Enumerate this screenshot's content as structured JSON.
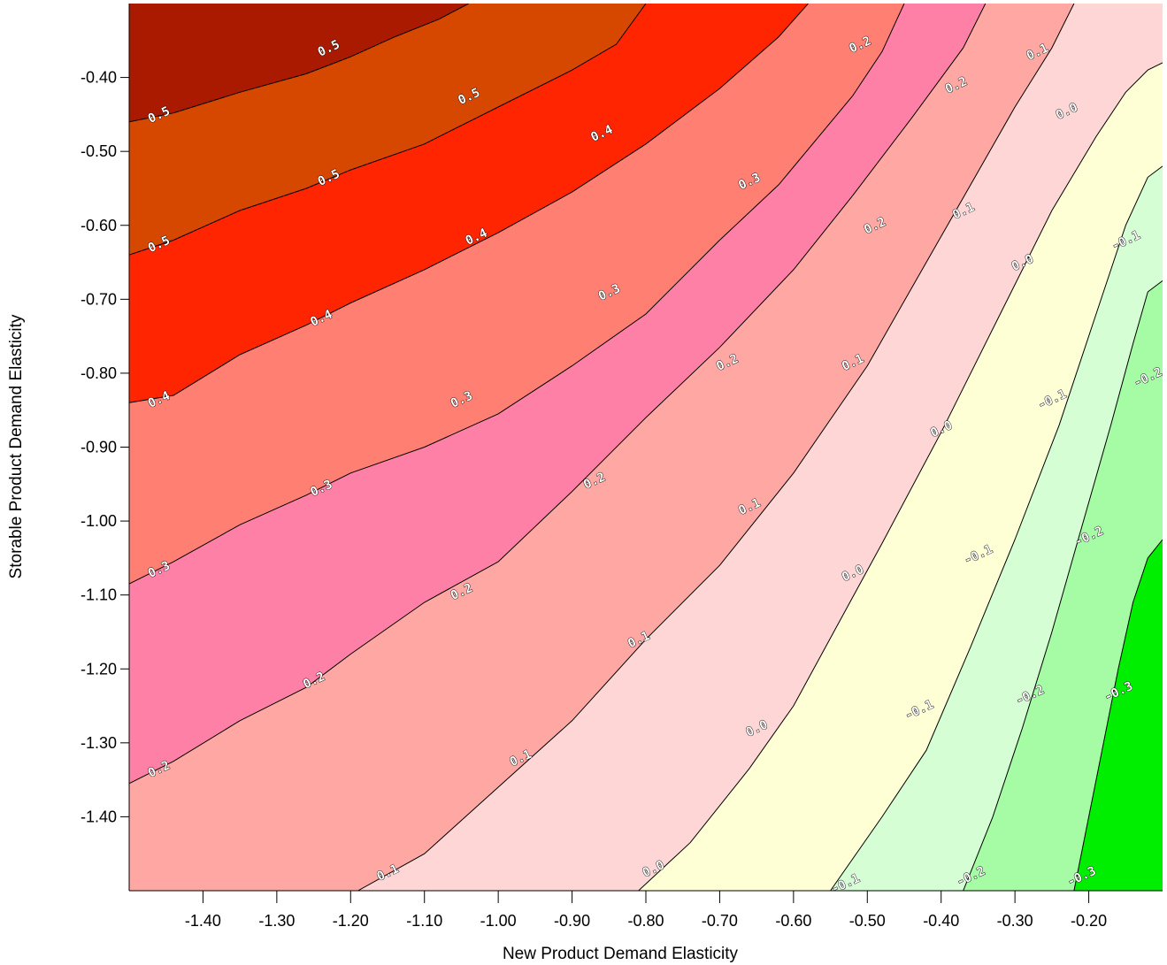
{
  "chart_data": {
    "type": "contour",
    "title": "",
    "xlabel": "New Product Demand Elasticity",
    "ylabel": "Storable Product Demand Elasticity",
    "xlim": [
      -1.5,
      -0.1
    ],
    "ylim": [
      -1.5,
      -0.3
    ],
    "x_ticks": [
      "-1.40",
      "-1.30",
      "-1.20",
      "-1.10",
      "-1.00",
      "-0.90",
      "-0.80",
      "-0.70",
      "-0.60",
      "-0.50",
      "-0.40",
      "-0.30",
      "-0.20"
    ],
    "y_ticks": [
      "-0.40",
      "-0.50",
      "-0.60",
      "-0.70",
      "-0.80",
      "-0.90",
      "-1.00",
      "-1.10",
      "-1.20",
      "-1.30",
      "-1.40"
    ],
    "grid": false,
    "legend": "none",
    "bands": [
      {
        "range": [
          0.5,
          0.6
        ],
        "color": "#aa1a00"
      },
      {
        "range": [
          0.4,
          0.5
        ],
        "color": "#d64800"
      },
      {
        "range": [
          0.3,
          0.4
        ],
        "color": "#ff2500"
      },
      {
        "range": [
          0.2,
          0.3
        ],
        "color": "#ff7f73"
      },
      {
        "range": [
          0.1,
          0.2
        ],
        "color": "#ff80a6"
      },
      {
        "range": [
          0.0,
          0.1
        ],
        "color": "#ffa8a3"
      },
      {
        "range": [
          -0.1,
          0.0
        ],
        "color": "#ffd6d6"
      },
      {
        "range": [
          -0.2,
          -0.1
        ],
        "color": "#ffffd5"
      },
      {
        "range": [
          -0.3,
          -0.2
        ],
        "color": "#d5fed5"
      },
      {
        "range": [
          -0.4,
          -0.3
        ],
        "color": "#a5fca5"
      },
      {
        "range": [
          -0.5,
          -0.4
        ],
        "color": "#00ee00"
      }
    ],
    "contours": [
      {
        "level": 0.5,
        "points": [
          [
            -1.5,
            -0.46
          ],
          [
            -1.44,
            -0.448
          ],
          [
            -1.35,
            -0.42
          ],
          [
            -1.26,
            -0.395
          ],
          [
            -1.2,
            -0.372
          ],
          [
            -1.14,
            -0.345
          ],
          [
            -1.08,
            -0.321
          ],
          [
            -1.04,
            -0.3
          ]
        ]
      },
      {
        "level": 0.4,
        "points": [
          [
            -1.5,
            -0.64
          ],
          [
            -1.44,
            -0.62
          ],
          [
            -1.35,
            -0.58
          ],
          [
            -1.26,
            -0.55
          ],
          [
            -1.2,
            -0.525
          ],
          [
            -1.1,
            -0.49
          ],
          [
            -1.0,
            -0.44
          ],
          [
            -0.9,
            -0.39
          ],
          [
            -0.84,
            -0.355
          ],
          [
            -0.8,
            -0.3
          ]
        ]
      },
      {
        "level": 0.3,
        "points": [
          [
            -1.5,
            -0.84
          ],
          [
            -1.44,
            -0.83
          ],
          [
            -1.35,
            -0.775
          ],
          [
            -1.26,
            -0.735
          ],
          [
            -1.2,
            -0.705
          ],
          [
            -1.1,
            -0.66
          ],
          [
            -1.0,
            -0.61
          ],
          [
            -0.9,
            -0.555
          ],
          [
            -0.8,
            -0.49
          ],
          [
            -0.7,
            -0.415
          ],
          [
            -0.62,
            -0.345
          ],
          [
            -0.58,
            -0.3
          ]
        ]
      },
      {
        "level": 0.2,
        "points": [
          [
            -1.5,
            -1.085
          ],
          [
            -1.44,
            -1.055
          ],
          [
            -1.35,
            -1.005
          ],
          [
            -1.26,
            -0.965
          ],
          [
            -1.2,
            -0.935
          ],
          [
            -1.1,
            -0.9
          ],
          [
            -1.0,
            -0.855
          ],
          [
            -0.9,
            -0.79
          ],
          [
            -0.8,
            -0.72
          ],
          [
            -0.7,
            -0.62
          ],
          [
            -0.62,
            -0.545
          ],
          [
            -0.52,
            -0.425
          ],
          [
            -0.48,
            -0.365
          ],
          [
            -0.45,
            -0.3
          ]
        ]
      },
      {
        "level": 0.1,
        "points": [
          [
            -1.5,
            -1.355
          ],
          [
            -1.44,
            -1.325
          ],
          [
            -1.35,
            -1.27
          ],
          [
            -1.26,
            -1.225
          ],
          [
            -1.2,
            -1.18
          ],
          [
            -1.1,
            -1.11
          ],
          [
            -1.0,
            -1.055
          ],
          [
            -0.9,
            -0.96
          ],
          [
            -0.8,
            -0.86
          ],
          [
            -0.7,
            -0.765
          ],
          [
            -0.6,
            -0.66
          ],
          [
            -0.52,
            -0.56
          ],
          [
            -0.44,
            -0.455
          ],
          [
            -0.37,
            -0.36
          ],
          [
            -0.34,
            -0.3
          ]
        ]
      },
      {
        "level": 0.0,
        "points": [
          [
            -1.19,
            -1.5
          ],
          [
            -1.1,
            -1.45
          ],
          [
            -1.0,
            -1.36
          ],
          [
            -0.9,
            -1.27
          ],
          [
            -0.8,
            -1.16
          ],
          [
            -0.7,
            -1.06
          ],
          [
            -0.6,
            -0.935
          ],
          [
            -0.5,
            -0.79
          ],
          [
            -0.42,
            -0.65
          ],
          [
            -0.36,
            -0.545
          ],
          [
            -0.3,
            -0.44
          ],
          [
            -0.25,
            -0.36
          ],
          [
            -0.22,
            -0.3
          ]
        ]
      },
      {
        "level": -0.1,
        "points": [
          [
            -0.81,
            -1.5
          ],
          [
            -0.74,
            -1.435
          ],
          [
            -0.66,
            -1.335
          ],
          [
            -0.6,
            -1.25
          ],
          [
            -0.54,
            -1.14
          ],
          [
            -0.48,
            -1.03
          ],
          [
            -0.4,
            -0.88
          ],
          [
            -0.32,
            -0.72
          ],
          [
            -0.25,
            -0.58
          ],
          [
            -0.19,
            -0.48
          ],
          [
            -0.15,
            -0.42
          ],
          [
            -0.12,
            -0.39
          ],
          [
            -0.1,
            -0.38
          ]
        ]
      },
      {
        "level": -0.2,
        "points": [
          [
            -0.55,
            -1.5
          ],
          [
            -0.48,
            -1.4
          ],
          [
            -0.42,
            -1.31
          ],
          [
            -0.36,
            -1.17
          ],
          [
            -0.3,
            -1.025
          ],
          [
            -0.24,
            -0.87
          ],
          [
            -0.19,
            -0.72
          ],
          [
            -0.15,
            -0.6
          ],
          [
            -0.12,
            -0.535
          ],
          [
            -0.1,
            -0.52
          ]
        ]
      },
      {
        "level": -0.3,
        "points": [
          [
            -0.37,
            -1.5
          ],
          [
            -0.33,
            -1.4
          ],
          [
            -0.29,
            -1.28
          ],
          [
            -0.25,
            -1.15
          ],
          [
            -0.21,
            -1.01
          ],
          [
            -0.17,
            -0.87
          ],
          [
            -0.14,
            -0.76
          ],
          [
            -0.12,
            -0.69
          ],
          [
            -0.1,
            -0.675
          ]
        ]
      },
      {
        "level": -0.4,
        "points": [
          [
            -0.22,
            -1.5
          ],
          [
            -0.2,
            -1.4
          ],
          [
            -0.18,
            -1.3
          ],
          [
            -0.16,
            -1.2
          ],
          [
            -0.14,
            -1.11
          ],
          [
            -0.12,
            -1.05
          ],
          [
            -0.1,
            -1.025
          ]
        ]
      }
    ],
    "contour_labels": [
      {
        "text": "0.5",
        "x": -1.46,
        "y": -0.45
      },
      {
        "text": "0.5",
        "x": -1.23,
        "y": -0.36
      },
      {
        "text": "0.5",
        "x": -1.04,
        "y": -0.425
      },
      {
        "text": "0.5",
        "x": -1.23,
        "y": -0.535
      },
      {
        "text": "0.5",
        "x": -1.46,
        "y": -0.625
      },
      {
        "text": "0.4",
        "x": -1.03,
        "y": -0.615
      },
      {
        "text": "0.4",
        "x": -0.86,
        "y": -0.475
      },
      {
        "text": "0.4",
        "x": -1.24,
        "y": -0.725
      },
      {
        "text": "0.4",
        "x": -1.46,
        "y": -0.835
      },
      {
        "text": "0.3",
        "x": -0.66,
        "y": -0.54
      },
      {
        "text": "0.3",
        "x": -0.85,
        "y": -0.69
      },
      {
        "text": "0.3",
        "x": -1.05,
        "y": -0.835
      },
      {
        "text": "0.3",
        "x": -1.24,
        "y": -0.955
      },
      {
        "text": "0.3",
        "x": -1.46,
        "y": -1.065
      },
      {
        "text": "0.2",
        "x": -0.51,
        "y": -0.355
      },
      {
        "text": "0.2",
        "x": -0.38,
        "y": -0.41
      },
      {
        "text": "0.2",
        "x": -0.49,
        "y": -0.6
      },
      {
        "text": "0.2",
        "x": -0.69,
        "y": -0.785
      },
      {
        "text": "0.2",
        "x": -0.87,
        "y": -0.945
      },
      {
        "text": "0.2",
        "x": -1.05,
        "y": -1.095
      },
      {
        "text": "0.2",
        "x": -1.25,
        "y": -1.215
      },
      {
        "text": "0.2",
        "x": -1.46,
        "y": -1.335
      },
      {
        "text": "0.1",
        "x": -0.27,
        "y": -0.365
      },
      {
        "text": "0.1",
        "x": -0.37,
        "y": -0.58
      },
      {
        "text": "0.1",
        "x": -0.52,
        "y": -0.785
      },
      {
        "text": "0.1",
        "x": -0.66,
        "y": -0.98
      },
      {
        "text": "0.1",
        "x": -0.81,
        "y": -1.16
      },
      {
        "text": "0.1",
        "x": -0.97,
        "y": -1.32
      },
      {
        "text": "0.1",
        "x": -1.15,
        "y": -1.475
      },
      {
        "text": "0.0",
        "x": -0.23,
        "y": -0.445
      },
      {
        "text": "0.0",
        "x": -0.29,
        "y": -0.65
      },
      {
        "text": "0.0",
        "x": -0.4,
        "y": -0.875
      },
      {
        "text": "0.0",
        "x": -0.52,
        "y": -1.07
      },
      {
        "text": "0.0",
        "x": -0.65,
        "y": -1.28
      },
      {
        "text": "0.0",
        "x": -0.79,
        "y": -1.47
      },
      {
        "text": "-0.1",
        "x": -0.15,
        "y": -0.62
      },
      {
        "text": "-0.1",
        "x": -0.25,
        "y": -0.835
      },
      {
        "text": "-0.1",
        "x": -0.35,
        "y": -1.045
      },
      {
        "text": "-0.1",
        "x": -0.43,
        "y": -1.255
      },
      {
        "text": "-0.1",
        "x": -0.53,
        "y": -1.49
      },
      {
        "text": "-0.2",
        "x": -0.12,
        "y": -0.805
      },
      {
        "text": "-0.2",
        "x": -0.2,
        "y": -1.02
      },
      {
        "text": "-0.2",
        "x": -0.28,
        "y": -1.235
      },
      {
        "text": "-0.2",
        "x": -0.36,
        "y": -1.48
      },
      {
        "text": "-0.3",
        "x": -0.16,
        "y": -1.23
      },
      {
        "text": "-0.3",
        "x": -0.21,
        "y": -1.48
      }
    ]
  }
}
